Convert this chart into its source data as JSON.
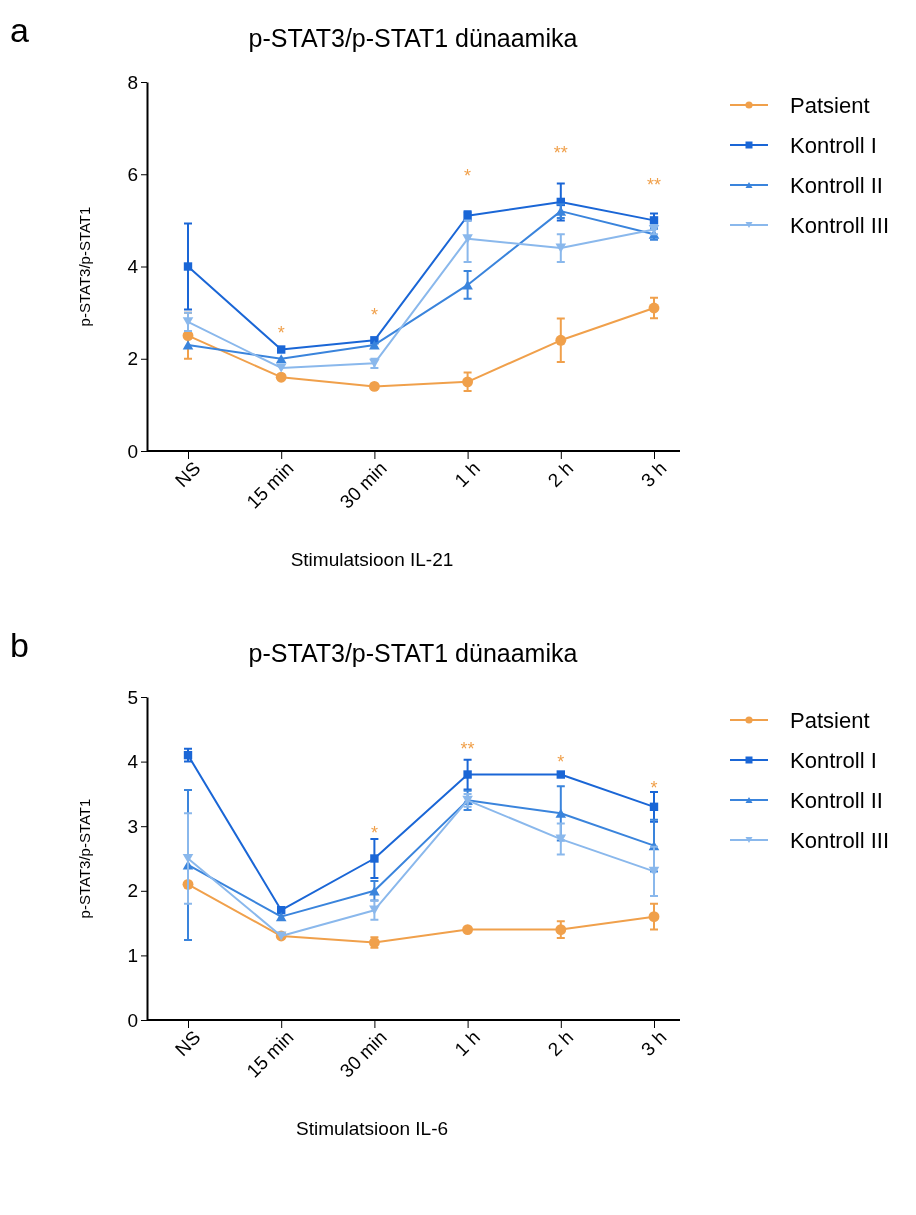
{
  "chart_data": [
    {
      "type": "line",
      "title": "p-STAT3/p-STAT1 dünaamika",
      "xlabel": "Stimulatsioon IL-21",
      "ylabel": "p-STAT3/p-STAT1",
      "categories": [
        "NS",
        "15 min",
        "30 min",
        "1 h",
        "2 h",
        "3 h"
      ],
      "ylim": [
        0,
        8
      ],
      "yticks": [
        0,
        2,
        4,
        6,
        8
      ],
      "grid": false,
      "legend": "right",
      "series": [
        {
          "name": "Patsient",
          "color": "#f0a04b",
          "marker": "circle",
          "values": [
            2.5,
            1.6,
            1.4,
            1.5,
            2.4,
            3.1
          ],
          "errors": [
            0.5,
            null,
            null,
            0.2,
            0.47,
            0.22
          ]
        },
        {
          "name": "Kontroll I",
          "color": "#1a66d6",
          "marker": "square",
          "values": [
            4.0,
            2.2,
            2.4,
            5.1,
            5.4,
            5.0
          ],
          "errors": [
            0.93,
            null,
            null,
            0.1,
            0.4,
            0.15
          ]
        },
        {
          "name": "Kontroll II",
          "color": "#3a84dc",
          "marker": "triangle",
          "values": [
            2.3,
            2.0,
            2.3,
            3.6,
            5.2,
            4.7
          ],
          "errors": [
            null,
            null,
            null,
            0.3,
            0.15,
            0.12
          ]
        },
        {
          "name": "Kontroll III",
          "color": "#8ab8ec",
          "marker": "triangle-down",
          "values": [
            2.8,
            1.8,
            1.9,
            4.6,
            4.4,
            4.8
          ],
          "errors": [
            0.2,
            null,
            0.1,
            [
              4.1,
              5.0
            ],
            0.3,
            0.1
          ]
        }
      ],
      "annotations": [
        "a",
        "*",
        "*",
        "*",
        "**",
        "**"
      ]
    },
    {
      "type": "line",
      "title": "p-STAT3/p-STAT1 dünaamika",
      "xlabel": "Stimulatsioon IL-6",
      "ylabel": "p-STAT3/p-STAT1",
      "categories": [
        "NS",
        "15 min",
        "30 min",
        "1 h",
        "2 h",
        "3 h"
      ],
      "ylim": [
        0,
        5
      ],
      "yticks": [
        0,
        1,
        2,
        3,
        4,
        5
      ],
      "grid": false,
      "legend": "right",
      "series": [
        {
          "name": "Patsient",
          "color": "#f0a04b",
          "marker": "circle",
          "values": [
            2.1,
            1.3,
            1.2,
            1.4,
            1.4,
            1.6
          ],
          "errors": [
            null,
            null,
            0.08,
            null,
            0.13,
            0.2
          ]
        },
        {
          "name": "Kontroll I",
          "color": "#1a66d6",
          "marker": "square",
          "values": [
            4.1,
            1.7,
            2.5,
            3.8,
            3.8,
            3.3
          ],
          "errors": [
            0.1,
            null,
            0.3,
            0.23,
            null,
            0.23
          ]
        },
        {
          "name": "Kontroll II",
          "color": "#3a84dc",
          "marker": "triangle",
          "values": [
            2.4,
            1.6,
            2.0,
            3.4,
            3.2,
            2.7
          ],
          "errors": [
            1.16,
            null,
            0.15,
            0.15,
            0.42,
            0.4
          ]
        },
        {
          "name": "Kontroll III",
          "color": "#8ab8ec",
          "marker": "triangle-down",
          "values": [
            2.5,
            1.3,
            1.7,
            3.4,
            2.8,
            2.3
          ],
          "errors": [
            0.7,
            null,
            0.15,
            0.1,
            0.24,
            0.38
          ]
        }
      ],
      "annotations": [
        "b",
        "*",
        "**",
        "*",
        "*"
      ]
    }
  ]
}
